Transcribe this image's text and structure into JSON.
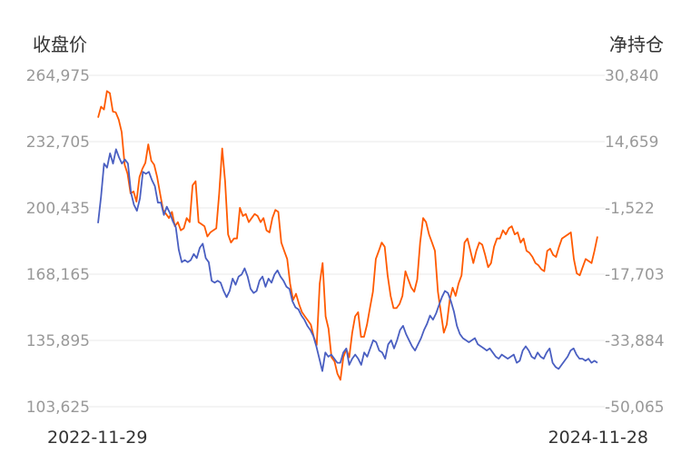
{
  "chart_data": {
    "type": "line",
    "left_axis_label": "收盘价",
    "right_axis_label": "净持仓",
    "left_ticks": [
      "264,975",
      "232,705",
      "200,435",
      "168,165",
      "135,895",
      "103,625"
    ],
    "right_ticks": [
      "30,840",
      "14,659",
      "-1,522",
      "-17,703",
      "-33,884",
      "-50,065"
    ],
    "ylim_left": [
      103625,
      264975
    ],
    "ylim_right": [
      -50065,
      30840
    ],
    "x_start_label": "2022-11-29",
    "x_end_label": "2024-11-28",
    "colors": {
      "close": "#4a5fc1",
      "net_position": "#ff5a00",
      "grid": "#e8e8e8"
    },
    "series": [
      {
        "color_key": "close",
        "axis": "left",
        "values": [
          193000,
          206000,
          222000,
          220000,
          227000,
          222000,
          229000,
          225000,
          222000,
          224000,
          222000,
          208000,
          202000,
          199000,
          205000,
          218000,
          217000,
          218000,
          214000,
          211000,
          203000,
          203000,
          197000,
          201000,
          198000,
          194000,
          191000,
          180000,
          174000,
          175000,
          174000,
          175000,
          178000,
          176000,
          181000,
          183000,
          176000,
          174000,
          165000,
          164000,
          165000,
          164000,
          160000,
          157000,
          160000,
          166000,
          163000,
          167000,
          168000,
          171000,
          167000,
          161000,
          159000,
          160000,
          165000,
          167000,
          162000,
          166000,
          164000,
          168000,
          170000,
          167000,
          165000,
          162000,
          161000,
          155000,
          152000,
          151000,
          148000,
          146000,
          143000,
          141000,
          138000,
          133000,
          127000,
          121000,
          130000,
          128000,
          129000,
          127000,
          125000,
          125000,
          130000,
          132000,
          124000,
          127000,
          129000,
          127000,
          124000,
          130000,
          128000,
          132000,
          136000,
          135000,
          131000,
          130000,
          127000,
          134000,
          136000,
          132000,
          136000,
          141000,
          143000,
          139000,
          136000,
          133000,
          131000,
          134000,
          137000,
          141000,
          144000,
          148000,
          146000,
          149000,
          153000,
          157000,
          160000,
          159000,
          155000,
          150000,
          143000,
          139000,
          137000,
          136000,
          135000,
          136000,
          137000,
          134000,
          133000,
          132000,
          131000,
          132000,
          130000,
          128000,
          127000,
          129000,
          128000,
          127000,
          128000,
          129000,
          125000,
          126000,
          131000,
          133000,
          131000,
          128000,
          127000,
          130000,
          128000,
          127000,
          130000,
          132000,
          125000,
          123000,
          122000,
          124000,
          126000,
          128000,
          131000,
          132000,
          129000,
          127000,
          127000,
          126000,
          127000,
          125000,
          126000,
          125000
        ]
      },
      {
        "color_key": "net_position",
        "axis": "right",
        "values": [
          20500,
          23200,
          22500,
          27000,
          26500,
          22000,
          21800,
          20000,
          17000,
          9000,
          6800,
          2000,
          2500,
          0,
          6000,
          8000,
          9500,
          14000,
          10000,
          9000,
          6000,
          2000,
          -2000,
          -3000,
          -4000,
          -2500,
          -6000,
          -5000,
          -7000,
          -6500,
          -4000,
          -5000,
          4000,
          5000,
          -5000,
          -5500,
          -6000,
          -8500,
          -7500,
          -7000,
          -6500,
          2000,
          13000,
          5000,
          -8000,
          -10000,
          -9000,
          -9000,
          -1500,
          -3500,
          -3000,
          -5000,
          -4000,
          -3000,
          -3500,
          -5000,
          -4000,
          -7000,
          -7500,
          -4000,
          -2000,
          -2500,
          -10000,
          -12000,
          -14000,
          -20000,
          -24000,
          -22500,
          -25000,
          -27000,
          -28000,
          -29000,
          -30000,
          -33000,
          -35000,
          -20000,
          -15000,
          -28000,
          -31000,
          -38000,
          -39000,
          -42000,
          -43500,
          -38000,
          -36000,
          -38000,
          -32000,
          -28000,
          -27000,
          -33000,
          -33000,
          -30000,
          -26000,
          -22000,
          -14000,
          -12000,
          -10000,
          -11000,
          -18000,
          -23000,
          -26000,
          -26000,
          -25000,
          -23000,
          -17000,
          -19000,
          -21000,
          -22000,
          -19000,
          -10000,
          -4000,
          -5000,
          -8000,
          -10000,
          -12000,
          -22000,
          -27000,
          -32000,
          -30000,
          -24000,
          -21000,
          -23000,
          -20000,
          -18000,
          -10000,
          -9000,
          -12000,
          -15000,
          -12000,
          -10000,
          -10500,
          -13000,
          -16000,
          -15000,
          -11000,
          -9000,
          -9000,
          -7000,
          -8000,
          -6500,
          -6000,
          -8000,
          -7500,
          -10000,
          -9000,
          -12000,
          -12500,
          -13500,
          -15000,
          -15500,
          -16500,
          -17000,
          -12000,
          -11500,
          -13000,
          -13500,
          -11000,
          -9000,
          -8500,
          -8000,
          -7500,
          -14000,
          -17500,
          -18000,
          -16000,
          -14000,
          -14500,
          -15000,
          -12000,
          -8500
        ]
      }
    ]
  }
}
